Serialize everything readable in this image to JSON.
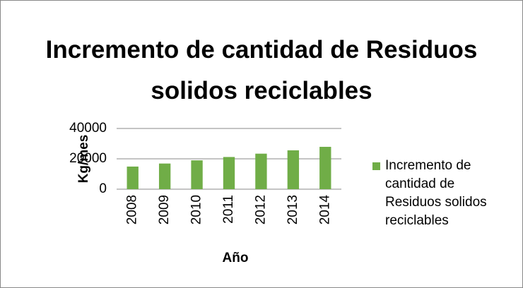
{
  "chart_data": {
    "type": "bar",
    "title": "Incremento de cantidad de Residuos solidos reciclables",
    "x_label": "Año",
    "y_label": "Kg/mes",
    "categories": [
      "2008",
      "2009",
      "2010",
      "2011",
      "2012",
      "2013",
      "2014"
    ],
    "series": [
      {
        "name": "Incremento de cantidad de Residuos solidos reciclables",
        "color": "#70ad47",
        "values": [
          14900,
          16900,
          19000,
          21200,
          23400,
          25600,
          27900
        ]
      }
    ],
    "ylim": [
      0,
      40000
    ],
    "yticks": [
      0,
      20000,
      40000
    ],
    "grid": true,
    "legend": "right"
  }
}
